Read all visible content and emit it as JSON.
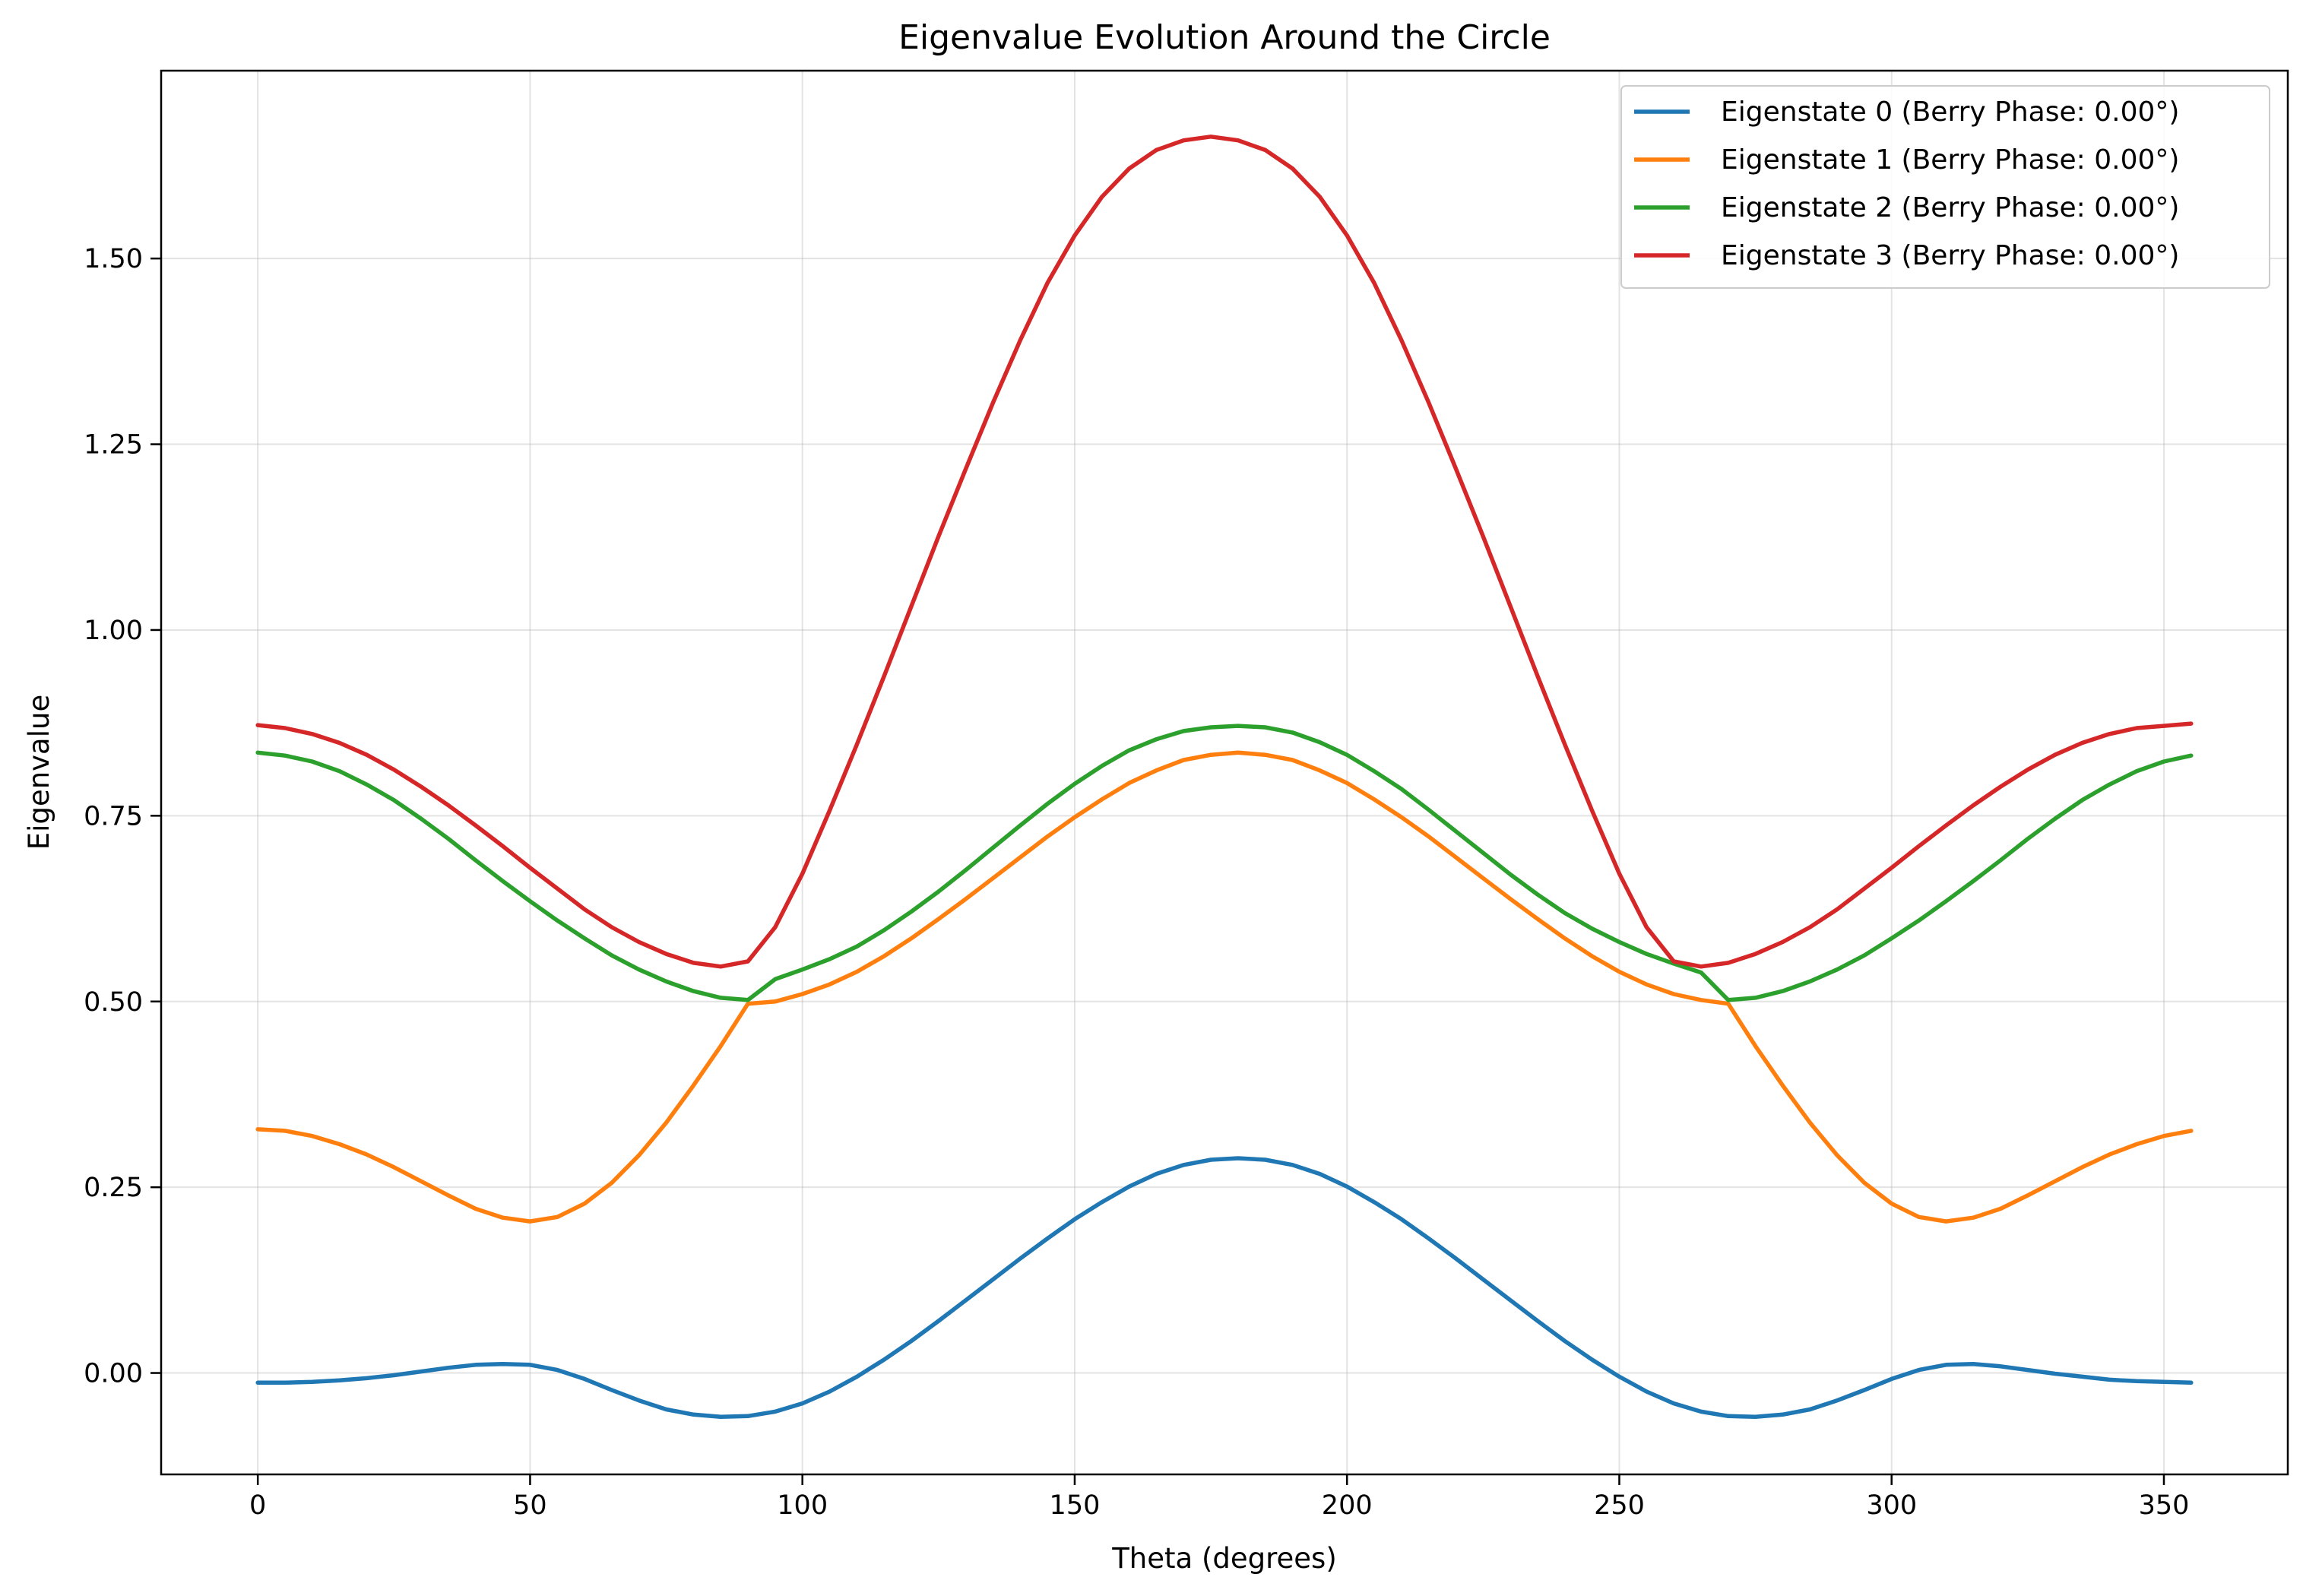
{
  "chart_data": {
    "type": "line",
    "title": "Eigenvalue Evolution Around the Circle",
    "xlabel": "Theta (degrees)",
    "ylabel": "Eigenvalue",
    "xlim": [
      -17.75,
      372.75
    ],
    "ylim": [
      -0.1365,
      1.7528
    ],
    "xticks": [
      0,
      50,
      100,
      150,
      200,
      250,
      300,
      350
    ],
    "xtick_labels": [
      "0",
      "50",
      "100",
      "150",
      "200",
      "250",
      "300",
      "350"
    ],
    "yticks": [
      0,
      0.25,
      0.5,
      0.75,
      1.0,
      1.25,
      1.5
    ],
    "ytick_labels": [
      "0.00",
      "0.25",
      "0.50",
      "0.75",
      "1.00",
      "1.25",
      "1.50"
    ],
    "grid": true,
    "legend_position": "top-right",
    "x": [
      0,
      5,
      10,
      15,
      20,
      25,
      30,
      35,
      40,
      45,
      50,
      55,
      60,
      65,
      70,
      75,
      80,
      85,
      90,
      95,
      100,
      105,
      110,
      115,
      120,
      125,
      130,
      135,
      140,
      145,
      150,
      155,
      160,
      165,
      170,
      175,
      180,
      185,
      190,
      195,
      200,
      205,
      210,
      215,
      220,
      225,
      230,
      235,
      240,
      245,
      250,
      255,
      260,
      265,
      270,
      275,
      280,
      285,
      290,
      295,
      300,
      305,
      310,
      315,
      320,
      325,
      330,
      335,
      340,
      345,
      350,
      355
    ],
    "series": [
      {
        "name": "Eigenstate 0 (Berry Phase: 0.00°)",
        "color": "#1f77b4",
        "values": [
          -0.013,
          -0.013,
          -0.012,
          -0.01,
          -0.007,
          -0.003,
          0.002,
          0.007,
          0.011,
          0.012,
          0.011,
          0.004,
          -0.008,
          -0.023,
          -0.037,
          -0.049,
          -0.056,
          -0.059,
          -0.058,
          -0.052,
          -0.041,
          -0.025,
          -0.005,
          0.018,
          0.043,
          0.07,
          0.098,
          0.126,
          0.154,
          0.181,
          0.207,
          0.23,
          0.251,
          0.268,
          0.28,
          0.287,
          0.289,
          0.287,
          0.28,
          0.268,
          0.251,
          0.23,
          0.207,
          0.181,
          0.154,
          0.126,
          0.098,
          0.07,
          0.043,
          0.018,
          -0.005,
          -0.025,
          -0.041,
          -0.052,
          -0.058,
          -0.059,
          -0.056,
          -0.049,
          -0.037,
          -0.023,
          -0.008,
          0.004,
          0.011,
          0.012,
          0.009,
          0.004,
          -0.001,
          -0.005,
          -0.009,
          -0.011,
          -0.012,
          -0.013
        ]
      },
      {
        "name": "Eigenstate 1 (Berry Phase: 0.00°)",
        "color": "#ff7f0e",
        "values": [
          0.328,
          0.326,
          0.319,
          0.308,
          0.294,
          0.277,
          0.258,
          0.239,
          0.221,
          0.209,
          0.204,
          0.21,
          0.228,
          0.256,
          0.293,
          0.337,
          0.387,
          0.44,
          0.497,
          0.5,
          0.51,
          0.523,
          0.54,
          0.561,
          0.585,
          0.611,
          0.638,
          0.666,
          0.694,
          0.722,
          0.748,
          0.772,
          0.794,
          0.811,
          0.825,
          0.832,
          0.835,
          0.832,
          0.825,
          0.811,
          0.794,
          0.772,
          0.748,
          0.722,
          0.694,
          0.666,
          0.638,
          0.611,
          0.585,
          0.561,
          0.54,
          0.523,
          0.51,
          0.502,
          0.497,
          0.44,
          0.387,
          0.337,
          0.293,
          0.256,
          0.228,
          0.21,
          0.204,
          0.209,
          0.221,
          0.239,
          0.258,
          0.277,
          0.294,
          0.308,
          0.319,
          0.326
        ]
      },
      {
        "name": "Eigenstate 2 (Berry Phase: 0.00°)",
        "color": "#2ca02c",
        "values": [
          0.835,
          0.831,
          0.823,
          0.81,
          0.792,
          0.771,
          0.746,
          0.719,
          0.69,
          0.662,
          0.635,
          0.609,
          0.585,
          0.562,
          0.543,
          0.527,
          0.514,
          0.505,
          0.502,
          0.53,
          0.543,
          0.557,
          0.574,
          0.596,
          0.621,
          0.648,
          0.677,
          0.707,
          0.737,
          0.766,
          0.793,
          0.817,
          0.838,
          0.853,
          0.864,
          0.869,
          0.871,
          0.869,
          0.862,
          0.849,
          0.832,
          0.81,
          0.786,
          0.758,
          0.729,
          0.7,
          0.671,
          0.644,
          0.619,
          0.598,
          0.58,
          0.564,
          0.551,
          0.539,
          0.502,
          0.505,
          0.514,
          0.527,
          0.543,
          0.562,
          0.585,
          0.609,
          0.635,
          0.662,
          0.69,
          0.719,
          0.746,
          0.771,
          0.792,
          0.81,
          0.823,
          0.831
        ]
      },
      {
        "name": "Eigenstate 3 (Berry Phase: 0.00°)",
        "color": "#d62728",
        "values": [
          0.872,
          0.868,
          0.86,
          0.848,
          0.832,
          0.812,
          0.789,
          0.764,
          0.737,
          0.709,
          0.68,
          0.652,
          0.624,
          0.6,
          0.58,
          0.564,
          0.552,
          0.547,
          0.554,
          0.6,
          0.672,
          0.757,
          0.846,
          0.938,
          1.032,
          1.126,
          1.217,
          1.306,
          1.39,
          1.467,
          1.531,
          1.583,
          1.621,
          1.646,
          1.659,
          1.664,
          1.659,
          1.646,
          1.621,
          1.583,
          1.531,
          1.467,
          1.39,
          1.306,
          1.217,
          1.126,
          1.032,
          0.938,
          0.846,
          0.757,
          0.672,
          0.6,
          0.554,
          0.547,
          0.552,
          0.564,
          0.58,
          0.6,
          0.624,
          0.652,
          0.68,
          0.709,
          0.737,
          0.764,
          0.789,
          0.812,
          0.832,
          0.848,
          0.86,
          0.868,
          0.871,
          0.874
        ]
      }
    ]
  }
}
